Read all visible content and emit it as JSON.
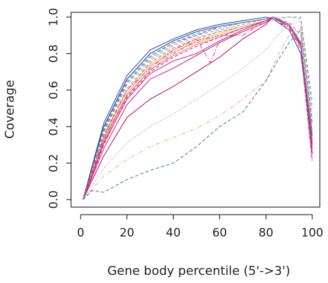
{
  "chart_data": {
    "type": "line",
    "title": "",
    "xlabel": "Gene body percentile (5'->3')",
    "ylabel": "Coverage",
    "xlim": [
      0,
      100
    ],
    "ylim": [
      0,
      1
    ],
    "x_ticks": [
      0,
      20,
      40,
      60,
      80,
      100
    ],
    "y_ticks": [
      0.0,
      0.2,
      0.4,
      0.6,
      0.8,
      1.0
    ],
    "x_tick_labels": [
      "0",
      "20",
      "40",
      "60",
      "80",
      "100"
    ],
    "y_tick_labels": [
      "0.0",
      "0.2",
      "0.4",
      "0.6",
      "0.8",
      "1.0"
    ],
    "grid": false,
    "legend": "none",
    "series": [
      {
        "color": "#2e4f9e",
        "dash": "solid",
        "x": [
          1,
          10,
          20,
          30,
          40,
          50,
          60,
          70,
          80,
          83,
          90,
          95,
          100
        ],
        "y": [
          0,
          0.42,
          0.68,
          0.82,
          0.88,
          0.93,
          0.96,
          0.98,
          1.0,
          0.99,
          0.93,
          0.8,
          0.3
        ]
      },
      {
        "color": "#1f3f8f",
        "dash": "solid",
        "x": [
          1,
          10,
          20,
          30,
          40,
          50,
          60,
          70,
          80,
          83,
          90,
          95,
          100
        ],
        "y": [
          0,
          0.4,
          0.66,
          0.8,
          0.87,
          0.92,
          0.95,
          0.97,
          0.99,
          1.0,
          0.95,
          0.85,
          0.35
        ]
      },
      {
        "color": "#6f8fd0",
        "dash": "dashed",
        "x": [
          1,
          10,
          20,
          30,
          40,
          50,
          60,
          70,
          80,
          83,
          90,
          95,
          100
        ],
        "y": [
          0,
          0.39,
          0.65,
          0.79,
          0.86,
          0.91,
          0.94,
          0.97,
          0.99,
          1.0,
          0.96,
          0.86,
          0.33
        ]
      },
      {
        "color": "#9a9a9a",
        "dash": "dashed",
        "x": [
          1,
          10,
          20,
          30,
          40,
          50,
          60,
          70,
          80,
          83,
          90,
          95,
          100
        ],
        "y": [
          0,
          0.37,
          0.63,
          0.77,
          0.85,
          0.9,
          0.93,
          0.96,
          0.99,
          1.0,
          0.97,
          0.9,
          0.38
        ]
      },
      {
        "color": "#b8b8b8",
        "dash": "dashed",
        "x": [
          1,
          10,
          20,
          30,
          40,
          50,
          60,
          70,
          80,
          85,
          90,
          95,
          100
        ],
        "y": [
          0,
          0.36,
          0.61,
          0.76,
          0.84,
          0.89,
          0.92,
          0.95,
          0.98,
          1.0,
          1.0,
          0.99,
          0.55
        ]
      },
      {
        "color": "#8c8c8c",
        "dash": "dashed",
        "x": [
          1,
          10,
          20,
          30,
          40,
          50,
          60,
          70,
          80,
          85,
          90,
          95,
          100
        ],
        "y": [
          0,
          0.35,
          0.6,
          0.75,
          0.83,
          0.88,
          0.92,
          0.95,
          0.98,
          0.99,
          1.0,
          1.0,
          0.5
        ]
      },
      {
        "color": "#f0c040",
        "dash": "solid",
        "x": [
          1,
          10,
          20,
          30,
          40,
          50,
          60,
          70,
          80,
          83,
          90,
          95,
          100
        ],
        "y": [
          0,
          0.34,
          0.6,
          0.74,
          0.82,
          0.87,
          0.91,
          0.95,
          0.98,
          1.0,
          0.96,
          0.86,
          0.3
        ]
      },
      {
        "color": "#f2a06a",
        "dash": "solid",
        "x": [
          1,
          10,
          20,
          30,
          40,
          50,
          60,
          70,
          80,
          83,
          90,
          95,
          100
        ],
        "y": [
          0,
          0.33,
          0.58,
          0.73,
          0.81,
          0.86,
          0.9,
          0.94,
          0.98,
          1.0,
          0.95,
          0.85,
          0.3
        ]
      },
      {
        "color": "#e07aa0",
        "dash": "solid",
        "x": [
          1,
          10,
          20,
          30,
          40,
          50,
          60,
          70,
          80,
          83,
          90,
          95,
          100
        ],
        "y": [
          0,
          0.32,
          0.57,
          0.71,
          0.79,
          0.85,
          0.89,
          0.94,
          0.98,
          1.0,
          0.95,
          0.84,
          0.28
        ]
      },
      {
        "color": "#c8287a",
        "dash": "solid",
        "x": [
          1,
          10,
          20,
          30,
          40,
          50,
          60,
          70,
          80,
          83,
          90,
          95,
          100
        ],
        "y": [
          0,
          0.31,
          0.55,
          0.69,
          0.76,
          0.8,
          0.87,
          0.93,
          0.98,
          1.0,
          0.96,
          0.86,
          0.3
        ]
      },
      {
        "color": "#d0207f",
        "dash": "solid",
        "x": [
          1,
          10,
          20,
          30,
          40,
          50,
          60,
          70,
          80,
          83,
          90,
          95,
          100
        ],
        "y": [
          0,
          0.28,
          0.52,
          0.66,
          0.72,
          0.79,
          0.86,
          0.92,
          0.97,
          1.0,
          0.96,
          0.86,
          0.25
        ]
      },
      {
        "color": "#b5166a",
        "dash": "solid",
        "x": [
          1,
          10,
          20,
          30,
          40,
          50,
          60,
          70,
          80,
          83,
          90,
          95,
          100
        ],
        "y": [
          0,
          0.24,
          0.45,
          0.55,
          0.62,
          0.7,
          0.78,
          0.88,
          0.96,
          1.0,
          0.95,
          0.85,
          0.25
        ]
      },
      {
        "color": "#e33f86",
        "dash": "dashdot",
        "x": [
          1,
          10,
          20,
          30,
          40,
          50,
          60,
          70,
          80,
          83,
          90,
          95,
          100
        ],
        "y": [
          0,
          0.33,
          0.57,
          0.71,
          0.8,
          0.87,
          0.9,
          0.9,
          0.98,
          1.0,
          0.94,
          0.82,
          0.2
        ]
      },
      {
        "color": "#d93a8a",
        "dash": "dashdot",
        "x": [
          1,
          10,
          20,
          30,
          40,
          50,
          56,
          60,
          70,
          80,
          83,
          90,
          95,
          100
        ],
        "y": [
          0,
          0.35,
          0.6,
          0.72,
          0.82,
          0.88,
          0.75,
          0.87,
          0.92,
          0.97,
          1.0,
          0.96,
          0.84,
          0.22
        ]
      },
      {
        "color": "#cc3377",
        "dash": "dashed",
        "x": [
          1,
          10,
          20,
          30,
          40,
          50,
          60,
          70,
          80,
          83,
          90,
          95,
          100
        ],
        "y": [
          0,
          0.3,
          0.56,
          0.7,
          0.78,
          0.84,
          0.89,
          0.94,
          0.98,
          1.0,
          0.93,
          0.84,
          0.27
        ]
      },
      {
        "color": "#5a78c0",
        "dash": "dashed",
        "x": [
          1,
          10,
          20,
          30,
          40,
          50,
          60,
          70,
          80,
          83,
          90,
          95,
          100
        ],
        "y": [
          0,
          0.38,
          0.64,
          0.78,
          0.86,
          0.9,
          0.95,
          0.97,
          0.99,
          1.0,
          0.95,
          0.85,
          0.32
        ]
      },
      {
        "color": "#a0a0a0",
        "dash": "dotted",
        "x": [
          1,
          10,
          20,
          30,
          40,
          50,
          60,
          70,
          80,
          85,
          90,
          95,
          100
        ],
        "y": [
          0,
          0.17,
          0.31,
          0.4,
          0.47,
          0.55,
          0.63,
          0.72,
          0.82,
          0.9,
          0.96,
          0.98,
          0.45
        ]
      },
      {
        "color": "#f5a98a",
        "dash": "dashdot",
        "x": [
          1,
          10,
          20,
          30,
          40,
          50,
          60,
          70,
          80,
          85,
          90,
          95,
          100
        ],
        "y": [
          0,
          0.13,
          0.22,
          0.29,
          0.34,
          0.39,
          0.46,
          0.55,
          0.65,
          0.79,
          0.9,
          0.95,
          0.38
        ]
      },
      {
        "color": "#4878a8",
        "dash": "dashed",
        "x": [
          1,
          5,
          10,
          20,
          30,
          40,
          50,
          60,
          70,
          80,
          85,
          90,
          95,
          100
        ],
        "y": [
          0,
          0.05,
          0.04,
          0.11,
          0.16,
          0.2,
          0.29,
          0.4,
          0.48,
          0.65,
          0.76,
          0.86,
          0.93,
          0.42
        ]
      }
    ]
  }
}
